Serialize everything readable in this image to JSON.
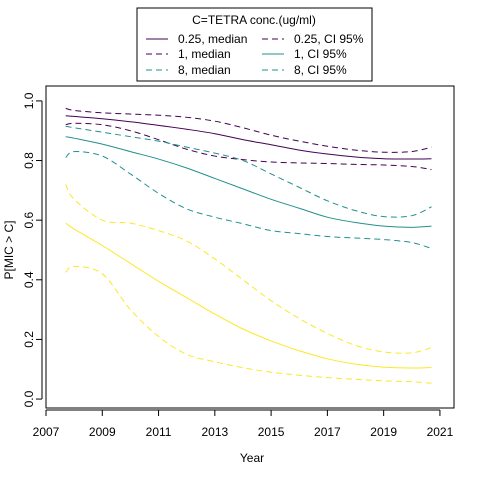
{
  "chart_data": {
    "type": "line",
    "xlabel": "Year",
    "ylabel": "P[MIC > C]",
    "xlim": [
      2007,
      2021.5
    ],
    "ylim": [
      -0.03,
      1.05
    ],
    "x_ticks": [
      2007,
      2009,
      2011,
      2013,
      2015,
      2017,
      2019,
      2021
    ],
    "y_ticks": [
      0.0,
      0.2,
      0.4,
      0.6,
      0.8,
      1.0
    ],
    "x_tick_labels": [
      "2007",
      "2009",
      "2011",
      "2013",
      "2015",
      "2017",
      "2019",
      "2021"
    ],
    "y_tick_labels": [
      "0.0",
      "0.2",
      "0.4",
      "0.6",
      "0.8",
      "1.0"
    ],
    "grid": false,
    "legend": {
      "title": "C=TETRA conc.(ug/ml)",
      "placement": "top-center",
      "entries": [
        {
          "label": "0.25, median",
          "series": 0
        },
        {
          "label": "0.25, CI 95%",
          "series": 1
        },
        {
          "label": "1, median",
          "series": 2
        },
        {
          "label": "1, CI 95%",
          "series": 3
        },
        {
          "label": "8, median",
          "series": 4
        },
        {
          "label": "8, CI 95%",
          "series": 5
        }
      ]
    },
    "x": [
      2007.7,
      2008,
      2009,
      2010,
      2011,
      2012,
      2013,
      2014,
      2015,
      2016,
      2017,
      2018,
      2019,
      2020,
      2020.7
    ],
    "series": [
      {
        "name": "0.25, median",
        "color": "#440154",
        "dash": "solid",
        "values": [
          0.95,
          0.948,
          0.94,
          0.93,
          0.918,
          0.905,
          0.89,
          0.87,
          0.853,
          0.835,
          0.822,
          0.812,
          0.806,
          0.805,
          0.806
        ]
      },
      {
        "name": "0.25, CI 95% upper",
        "color": "#440154",
        "dash": "dashed",
        "values": [
          0.975,
          0.968,
          0.96,
          0.956,
          0.952,
          0.945,
          0.932,
          0.91,
          0.885,
          0.865,
          0.848,
          0.835,
          0.828,
          0.83,
          0.845
        ]
      },
      {
        "name": "0.25, CI 95% lower",
        "color": "#440154",
        "dash": "dashed",
        "values": [
          0.92,
          0.925,
          0.92,
          0.9,
          0.87,
          0.838,
          0.815,
          0.803,
          0.795,
          0.792,
          0.79,
          0.787,
          0.785,
          0.78,
          0.77
        ]
      },
      {
        "name": "1, median",
        "color": "#21908C",
        "dash": "solid",
        "values": [
          0.88,
          0.875,
          0.855,
          0.83,
          0.805,
          0.775,
          0.74,
          0.705,
          0.67,
          0.64,
          0.61,
          0.592,
          0.58,
          0.576,
          0.58
        ]
      },
      {
        "name": "1, CI 95% upper",
        "color": "#21908C",
        "dash": "dashed",
        "values": [
          0.915,
          0.91,
          0.895,
          0.88,
          0.865,
          0.845,
          0.825,
          0.8,
          0.755,
          0.71,
          0.665,
          0.632,
          0.612,
          0.615,
          0.645
        ]
      },
      {
        "name": "1, CI 95% lower",
        "color": "#21908C",
        "dash": "dashed",
        "values": [
          0.81,
          0.83,
          0.815,
          0.755,
          0.69,
          0.638,
          0.61,
          0.588,
          0.565,
          0.555,
          0.545,
          0.54,
          0.535,
          0.525,
          0.505
        ]
      },
      {
        "name": "8, median",
        "color": "#FDE725",
        "dash": "solid",
        "values": [
          0.59,
          0.57,
          0.515,
          0.455,
          0.395,
          0.34,
          0.285,
          0.235,
          0.195,
          0.162,
          0.135,
          0.117,
          0.107,
          0.104,
          0.106
        ]
      },
      {
        "name": "8, CI 95% upper",
        "color": "#FDE725",
        "dash": "dashed",
        "values": [
          0.72,
          0.67,
          0.6,
          0.59,
          0.565,
          0.53,
          0.47,
          0.4,
          0.33,
          0.27,
          0.22,
          0.18,
          0.158,
          0.155,
          0.173
        ]
      },
      {
        "name": "8, CI 95% lower",
        "color": "#FDE725",
        "dash": "dashed",
        "values": [
          0.425,
          0.445,
          0.42,
          0.3,
          0.21,
          0.15,
          0.125,
          0.105,
          0.09,
          0.08,
          0.072,
          0.066,
          0.061,
          0.058,
          0.053
        ]
      }
    ]
  }
}
